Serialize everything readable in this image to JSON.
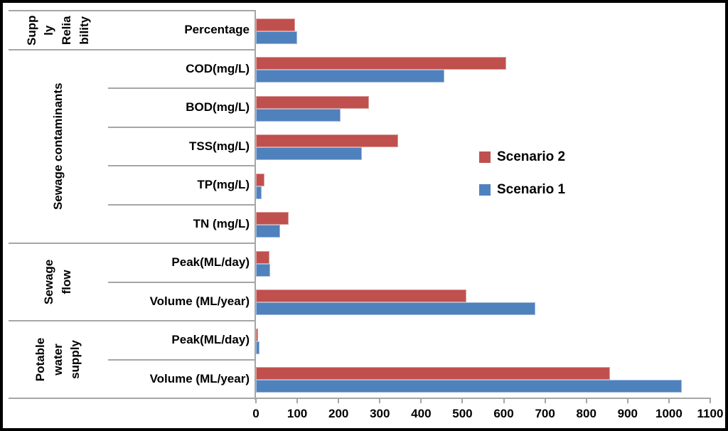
{
  "chart_data": {
    "type": "bar",
    "orientation": "horizontal",
    "title": "",
    "xlabel": "",
    "ylabel": "",
    "xlim": [
      0,
      1100
    ],
    "x_ticks": [
      0,
      100,
      200,
      300,
      400,
      500,
      600,
      700,
      800,
      900,
      1000,
      1100
    ],
    "grid": false,
    "legend_position": "center-right",
    "groups": [
      {
        "name": "Supply Reliability",
        "display": "Supp\nly\nRelia\nbility",
        "row_count": 1
      },
      {
        "name": "Sewage contaminants",
        "display": "Sewage contaminants",
        "row_count": 5
      },
      {
        "name": "Sewage flow",
        "display": "Sewage\nflow",
        "row_count": 2
      },
      {
        "name": "Potable water supply",
        "display": "Potable\nwater\nsupply",
        "row_count": 2
      }
    ],
    "categories": [
      "Percentage",
      "COD(mg/L)",
      "BOD(mg/L)",
      "TSS(mg/L)",
      "TP(mg/L)",
      "TN (mg/L)",
      "Peak(ML/day)",
      "Volume (ML/year)",
      "Peak(ML/day)",
      "Volume (ML/year)"
    ],
    "series": [
      {
        "name": "Scenario 2",
        "color": "#C0504D",
        "values": [
          95,
          606,
          274,
          344,
          21,
          79,
          32,
          510,
          6,
          857
        ]
      },
      {
        "name": "Scenario 1",
        "color": "#4F81BD",
        "values": [
          100,
          456,
          205,
          257,
          13,
          59,
          34,
          677,
          9,
          1032
        ]
      }
    ]
  },
  "colors": {
    "axis": "#a6a6a6",
    "text": "#000000",
    "frame": "#000000",
    "background": "#ffffff",
    "scenario2": "#C0504D",
    "scenario1": "#4F81BD"
  }
}
